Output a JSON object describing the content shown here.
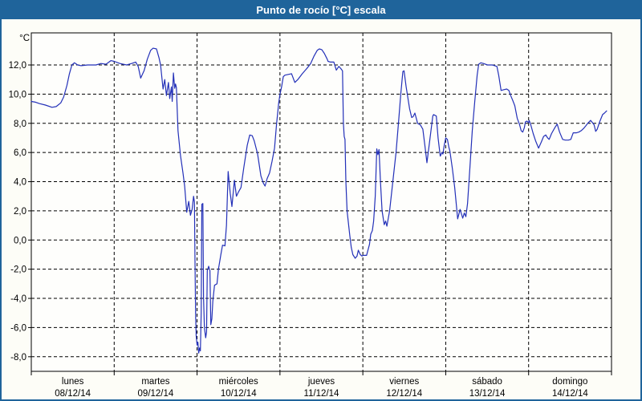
{
  "window": {
    "title": "Punto de rocío [°C] escala"
  },
  "colors": {
    "titlebar": "#1f649b",
    "frame": "#1f649b",
    "line": "#2330b8",
    "grid": "#000000",
    "axis_text": "#000000",
    "plot_bg": "#fefefc",
    "page_bg": "#fdfdf7"
  },
  "chart_data": {
    "type": "line",
    "title": "Punto de rocío [°C] escala",
    "y_unit_label": "°C",
    "ylim": [
      -9,
      14.2
    ],
    "grid": "dashed",
    "legend_position": "none",
    "y_ticks": [
      {
        "value": 12,
        "label": "12,0"
      },
      {
        "value": 10,
        "label": "10,0"
      },
      {
        "value": 8,
        "label": "8,0"
      },
      {
        "value": 6,
        "label": "6,0"
      },
      {
        "value": 4,
        "label": "4,0"
      },
      {
        "value": 2,
        "label": "2,0"
      },
      {
        "value": 0,
        "label": "0,0"
      },
      {
        "value": -2,
        "label": "-2,0"
      },
      {
        "value": -4,
        "label": "-4,0"
      },
      {
        "value": -6,
        "label": "-6,0"
      },
      {
        "value": -8,
        "label": "-8,0"
      }
    ],
    "x_days": [
      {
        "name": "lunes",
        "date": "08/12/14"
      },
      {
        "name": "martes",
        "date": "09/12/14"
      },
      {
        "name": "miércoles",
        "date": "10/12/14"
      },
      {
        "name": "jueves",
        "date": "11/12/14"
      },
      {
        "name": "viernes",
        "date": "12/12/14"
      },
      {
        "name": "sábado",
        "date": "13/12/14"
      },
      {
        "name": "domingo",
        "date": "14/12/14"
      }
    ],
    "series": [
      {
        "name": "Punto de rocío",
        "color": "#2330b8",
        "points": [
          [
            0,
            9.5
          ],
          [
            0.05,
            9.45
          ],
          [
            0.1,
            9.35
          ],
          [
            0.17,
            9.25
          ],
          [
            0.25,
            9.1
          ],
          [
            0.3,
            9.15
          ],
          [
            0.355,
            9.4
          ],
          [
            0.39,
            9.8
          ],
          [
            0.43,
            10.6
          ],
          [
            0.46,
            11.4
          ],
          [
            0.49,
            12.0
          ],
          [
            0.52,
            12.15
          ],
          [
            0.56,
            12.0
          ],
          [
            0.6,
            11.95
          ],
          [
            0.68,
            12.0
          ],
          [
            0.78,
            12.0
          ],
          [
            0.84,
            12.1
          ],
          [
            0.9,
            12.05
          ],
          [
            0.96,
            12.3
          ],
          [
            1.0,
            12.25
          ],
          [
            1.07,
            12.1
          ],
          [
            1.15,
            12.0
          ],
          [
            1.21,
            12.1
          ],
          [
            1.26,
            12.2
          ],
          [
            1.29,
            11.9
          ],
          [
            1.32,
            11.1
          ],
          [
            1.36,
            11.6
          ],
          [
            1.4,
            12.4
          ],
          [
            1.44,
            13.0
          ],
          [
            1.47,
            13.15
          ],
          [
            1.51,
            13.1
          ],
          [
            1.54,
            12.5
          ],
          [
            1.56,
            12.0
          ],
          [
            1.59,
            10.35
          ],
          [
            1.61,
            11.0
          ],
          [
            1.63,
            9.9
          ],
          [
            1.655,
            10.8
          ],
          [
            1.67,
            9.7
          ],
          [
            1.69,
            10.5
          ],
          [
            1.7,
            9.5
          ],
          [
            1.715,
            11.45
          ],
          [
            1.73,
            10.4
          ],
          [
            1.74,
            10.7
          ],
          [
            1.75,
            10.45
          ],
          [
            1.77,
            7.5
          ],
          [
            1.8,
            5.8
          ],
          [
            1.83,
            4.6
          ],
          [
            1.85,
            3.7
          ],
          [
            1.875,
            1.9
          ],
          [
            1.9,
            2.65
          ],
          [
            1.92,
            1.7
          ],
          [
            1.94,
            2.1
          ],
          [
            1.958,
            3.0
          ],
          [
            1.968,
            2.6
          ],
          [
            1.975,
            -1.5
          ],
          [
            1.983,
            -5.3
          ],
          [
            1.99,
            -6.6
          ],
          [
            2.0,
            -7.2
          ],
          [
            2.01,
            -7.0
          ],
          [
            2.02,
            -7.75
          ],
          [
            2.03,
            -7.4
          ],
          [
            2.04,
            -7.6
          ],
          [
            2.05,
            -5.0
          ],
          [
            2.057,
            2.45
          ],
          [
            2.07,
            2.5
          ],
          [
            2.078,
            -3.9
          ],
          [
            2.088,
            -6.0
          ],
          [
            2.104,
            -6.7
          ],
          [
            2.115,
            -6.3
          ],
          [
            2.123,
            -2.1
          ],
          [
            2.14,
            -1.8
          ],
          [
            2.155,
            -2.1
          ],
          [
            2.166,
            -5.8
          ],
          [
            2.178,
            -5.4
          ],
          [
            2.19,
            -4.2
          ],
          [
            2.21,
            -3.1
          ],
          [
            2.24,
            -3.0
          ],
          [
            2.258,
            -2.0
          ],
          [
            2.287,
            -1.0
          ],
          [
            2.307,
            -0.35
          ],
          [
            2.336,
            -0.4
          ],
          [
            2.355,
            1.0
          ],
          [
            2.375,
            4.7
          ],
          [
            2.4,
            3.2
          ],
          [
            2.42,
            2.3
          ],
          [
            2.45,
            4.1
          ],
          [
            2.475,
            3.0
          ],
          [
            2.5,
            3.3
          ],
          [
            2.53,
            3.6
          ],
          [
            2.565,
            5.0
          ],
          [
            2.605,
            6.5
          ],
          [
            2.635,
            7.2
          ],
          [
            2.665,
            7.15
          ],
          [
            2.69,
            6.8
          ],
          [
            2.73,
            5.9
          ],
          [
            2.77,
            4.4
          ],
          [
            2.8,
            3.9
          ],
          [
            2.82,
            3.7
          ],
          [
            2.845,
            4.2
          ],
          [
            2.875,
            4.6
          ],
          [
            2.905,
            5.4
          ],
          [
            2.935,
            6.3
          ],
          [
            2.96,
            8.0
          ],
          [
            2.985,
            9.4
          ],
          [
            3.0,
            10.0
          ],
          [
            3.02,
            10.5
          ],
          [
            3.04,
            11.2
          ],
          [
            3.06,
            11.3
          ],
          [
            3.1,
            11.35
          ],
          [
            3.14,
            11.4
          ],
          [
            3.18,
            10.8
          ],
          [
            3.215,
            11.0
          ],
          [
            3.27,
            11.4
          ],
          [
            3.33,
            11.8
          ],
          [
            3.37,
            12.1
          ],
          [
            3.41,
            12.6
          ],
          [
            3.45,
            13.0
          ],
          [
            3.475,
            13.1
          ],
          [
            3.505,
            13.05
          ],
          [
            3.535,
            12.8
          ],
          [
            3.57,
            12.4
          ],
          [
            3.58,
            12.25
          ],
          [
            3.61,
            12.2
          ],
          [
            3.65,
            12.2
          ],
          [
            3.68,
            11.65
          ],
          [
            3.71,
            11.9
          ],
          [
            3.735,
            11.75
          ],
          [
            3.755,
            11.6
          ],
          [
            3.765,
            8.0
          ],
          [
            3.775,
            7.1
          ],
          [
            3.785,
            6.9
          ],
          [
            3.795,
            4.0
          ],
          [
            3.81,
            2.0
          ],
          [
            3.825,
            1.2
          ],
          [
            3.843,
            0.3
          ],
          [
            3.86,
            -0.5
          ],
          [
            3.88,
            -1.0
          ],
          [
            3.908,
            -1.25
          ],
          [
            3.93,
            -1.1
          ],
          [
            3.945,
            -0.7
          ],
          [
            3.97,
            -1.0
          ],
          [
            3.99,
            -1.1
          ],
          [
            4.0,
            -1.05
          ],
          [
            4.045,
            -1.05
          ],
          [
            4.08,
            -0.3
          ],
          [
            4.095,
            0.4
          ],
          [
            4.115,
            0.65
          ],
          [
            4.13,
            1.3
          ],
          [
            4.15,
            3.0
          ],
          [
            4.168,
            6.25
          ],
          [
            4.182,
            5.85
          ],
          [
            4.195,
            6.2
          ],
          [
            4.213,
            4.0
          ],
          [
            4.232,
            2.0
          ],
          [
            4.258,
            1.05
          ],
          [
            4.275,
            1.3
          ],
          [
            4.29,
            0.95
          ],
          [
            4.323,
            2.0
          ],
          [
            4.362,
            4.0
          ],
          [
            4.4,
            6.0
          ],
          [
            4.429,
            8.0
          ],
          [
            4.458,
            10.0
          ],
          [
            4.483,
            11.55
          ],
          [
            4.497,
            11.6
          ],
          [
            4.522,
            10.5
          ],
          [
            4.564,
            9.0
          ],
          [
            4.589,
            8.4
          ],
          [
            4.606,
            8.45
          ],
          [
            4.628,
            8.7
          ],
          [
            4.661,
            8.0
          ],
          [
            4.693,
            7.9
          ],
          [
            4.724,
            7.6
          ],
          [
            4.748,
            6.5
          ],
          [
            4.773,
            5.3
          ],
          [
            4.811,
            7.0
          ],
          [
            4.844,
            8.5
          ],
          [
            4.854,
            8.6
          ],
          [
            4.886,
            8.5
          ],
          [
            4.908,
            7.0
          ],
          [
            4.934,
            5.75
          ],
          [
            4.953,
            6.0
          ],
          [
            4.966,
            5.9
          ],
          [
            4.982,
            6.5
          ],
          [
            5.0,
            7.0
          ],
          [
            5.02,
            6.9
          ],
          [
            5.038,
            6.35
          ],
          [
            5.05,
            6.1
          ],
          [
            5.08,
            4.9
          ],
          [
            5.108,
            3.6
          ],
          [
            5.127,
            2.5
          ],
          [
            5.144,
            1.45
          ],
          [
            5.173,
            2.1
          ],
          [
            5.205,
            1.5
          ],
          [
            5.224,
            1.85
          ],
          [
            5.243,
            1.6
          ],
          [
            5.263,
            2.5
          ],
          [
            5.292,
            5.0
          ],
          [
            5.32,
            7.5
          ],
          [
            5.35,
            9.5
          ],
          [
            5.379,
            11.3
          ],
          [
            5.398,
            12.05
          ],
          [
            5.424,
            12.15
          ],
          [
            5.456,
            12.1
          ],
          [
            5.504,
            12.0
          ],
          [
            5.562,
            12.0
          ],
          [
            5.591,
            11.95
          ],
          [
            5.617,
            11.9
          ],
          [
            5.639,
            11.3
          ],
          [
            5.668,
            10.25
          ],
          [
            5.697,
            10.3
          ],
          [
            5.736,
            10.35
          ],
          [
            5.762,
            10.25
          ],
          [
            5.784,
            9.9
          ],
          [
            5.81,
            9.55
          ],
          [
            5.833,
            9.2
          ],
          [
            5.862,
            8.35
          ],
          [
            5.891,
            7.9
          ],
          [
            5.91,
            7.5
          ],
          [
            5.929,
            7.4
          ],
          [
            5.949,
            7.7
          ],
          [
            5.961,
            8.1
          ],
          [
            5.978,
            8.15
          ],
          [
            6.0,
            8.05
          ],
          [
            6.007,
            8.2
          ],
          [
            6.026,
            7.9
          ],
          [
            6.055,
            7.3
          ],
          [
            6.084,
            6.8
          ],
          [
            6.12,
            6.3
          ],
          [
            6.152,
            6.7
          ],
          [
            6.181,
            7.1
          ],
          [
            6.207,
            7.2
          ],
          [
            6.229,
            7.0
          ],
          [
            6.248,
            6.9
          ],
          [
            6.277,
            7.3
          ],
          [
            6.316,
            7.7
          ],
          [
            6.345,
            7.95
          ],
          [
            6.374,
            7.4
          ],
          [
            6.41,
            6.9
          ],
          [
            6.442,
            6.85
          ],
          [
            6.48,
            6.85
          ],
          [
            6.509,
            6.9
          ],
          [
            6.538,
            7.35
          ],
          [
            6.577,
            7.35
          ],
          [
            6.606,
            7.4
          ],
          [
            6.635,
            7.5
          ],
          [
            6.664,
            7.65
          ],
          [
            6.693,
            7.85
          ],
          [
            6.712,
            8.0
          ],
          [
            6.748,
            8.2
          ],
          [
            6.77,
            8.05
          ],
          [
            6.79,
            7.9
          ],
          [
            6.809,
            7.45
          ],
          [
            6.828,
            7.6
          ],
          [
            6.857,
            8.1
          ],
          [
            6.893,
            8.6
          ],
          [
            6.915,
            8.7
          ],
          [
            6.941,
            8.85
          ]
        ]
      }
    ]
  }
}
